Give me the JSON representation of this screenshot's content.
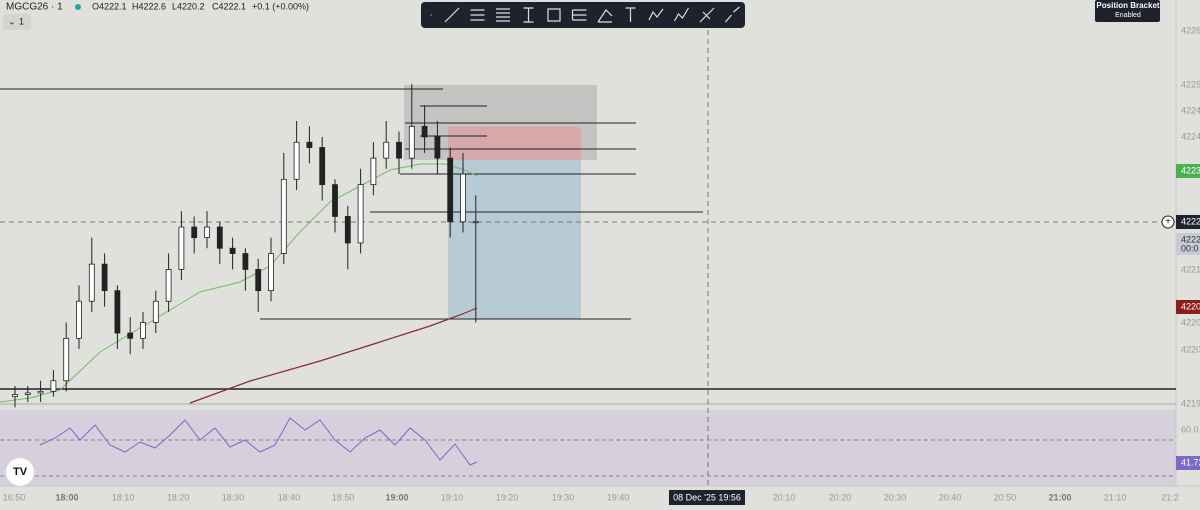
{
  "header": {
    "symbol": "MGCG26 · 1",
    "open": "O4222.1",
    "high": "H4222.6",
    "low": "L4220.2",
    "close": "C4222.1",
    "change": "+0.1 (+0.00%)",
    "collapse": "1"
  },
  "position_bracket": {
    "title": "Position Bracket",
    "status": "Enabled"
  },
  "price_axis": [
    "4226",
    "4225",
    "4224",
    "4224",
    "4221",
    "4220",
    "4220",
    "4219"
  ],
  "tags": {
    "ma_green": "4223",
    "last": "4222",
    "countdown_price": "4222",
    "countdown": "00:0",
    "ma_red": "4220"
  },
  "rsi_axis": {
    "level": "60.0",
    "value": "41.72"
  },
  "time_axis": [
    "16:50",
    "18:00",
    "18:10",
    "18:20",
    "18:30",
    "18:40",
    "18:50",
    "19:00",
    "19:10",
    "19:20",
    "19:30",
    "19:40",
    "20:10",
    "20:20",
    "20:30",
    "20:40",
    "20:50",
    "21:00",
    "21:10",
    "21:2"
  ],
  "crosshair_time": "08 Dec '25  19:56",
  "candles": {
    "open": [
      4218.8,
      4218.84,
      4218.87,
      4218.9,
      4219.1,
      4219.9,
      4220.6,
      4221.3,
      4220.8,
      4220.0,
      4219.9,
      4220.2,
      4220.6,
      4221.2,
      4222.0,
      4221.8,
      4222.0,
      4221.6,
      4221.5,
      4221.2,
      4220.8,
      4221.5,
      4222.9,
      4223.6,
      4223.5,
      4222.8,
      4222.2,
      4221.7,
      4222.8,
      4223.3,
      4223.6,
      4223.3,
      4223.9,
      4223.7,
      4223.3,
      4222.1,
      4222.1
    ],
    "high": [
      4219.0,
      4219.0,
      4219.1,
      4219.3,
      4220.2,
      4220.9,
      4221.8,
      4221.5,
      4220.9,
      4220.3,
      4220.4,
      4220.8,
      4221.5,
      4222.3,
      4222.2,
      4222.3,
      4222.1,
      4221.8,
      4221.6,
      4221.4,
      4221.8,
      4223.4,
      4224.0,
      4223.9,
      4223.7,
      4222.9,
      4222.4,
      4223.1,
      4223.6,
      4224.0,
      4223.8,
      4224.7,
      4224.3,
      4224.0,
      4223.5,
      4223.4,
      4222.6
    ],
    "low": [
      4218.6,
      4218.7,
      4218.7,
      4218.8,
      4218.9,
      4219.7,
      4220.4,
      4220.5,
      4219.7,
      4219.6,
      4219.7,
      4220.0,
      4220.4,
      4221.0,
      4221.5,
      4221.6,
      4221.3,
      4221.2,
      4220.8,
      4220.4,
      4220.6,
      4221.3,
      4222.7,
      4223.2,
      4222.5,
      4221.9,
      4221.2,
      4221.5,
      4222.6,
      4223.1,
      4223.0,
      4223.1,
      4223.4,
      4223.0,
      4221.8,
      4221.9,
      4220.2
    ],
    "close": [
      4218.84,
      4218.87,
      4218.9,
      4219.1,
      4219.9,
      4220.6,
      4221.3,
      4220.8,
      4220.0,
      4219.9,
      4220.2,
      4220.6,
      4221.2,
      4222.0,
      4221.8,
      4222.0,
      4221.6,
      4221.5,
      4221.2,
      4220.8,
      4221.5,
      4222.9,
      4223.6,
      4223.5,
      4222.8,
      4222.2,
      4221.7,
      4222.8,
      4223.3,
      4223.6,
      4223.3,
      4223.9,
      4223.7,
      4223.3,
      4222.1,
      4223.0,
      4222.1
    ]
  }
}
